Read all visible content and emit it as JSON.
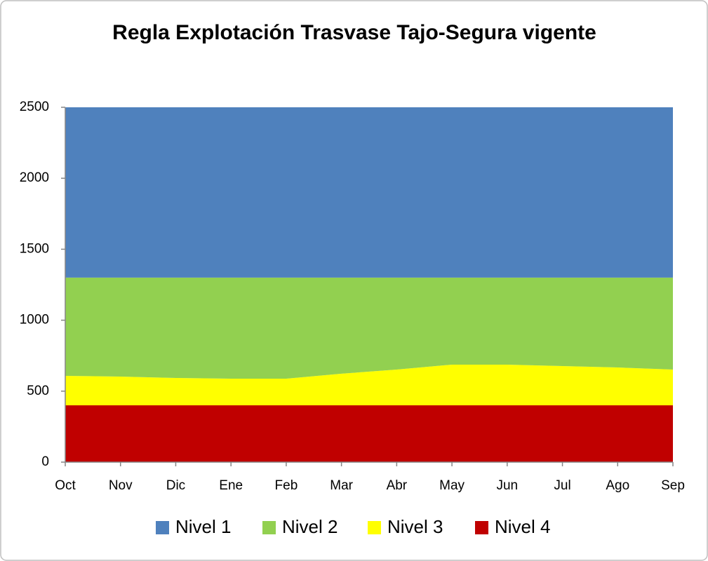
{
  "chart_data": {
    "type": "stacked_area",
    "title": "Regla Explotación Trasvase Tajo-Segura vigente",
    "categories": [
      "Oct",
      "Nov",
      "Dic",
      "Ene",
      "Feb",
      "Mar",
      "Abr",
      "May",
      "Jun",
      "Jul",
      "Ago",
      "Sep"
    ],
    "series": [
      {
        "name": "Nivel 1",
        "color": "#4f81bd",
        "values": [
          1200,
          1200,
          1200,
          1200,
          1200,
          1200,
          1200,
          1200,
          1200,
          1200,
          1200,
          1200
        ]
      },
      {
        "name": "Nivel 2",
        "color": "#92d050",
        "values": [
          692,
          697,
          707,
          712,
          712,
          677,
          648,
          613,
          613,
          623,
          633,
          648
        ]
      },
      {
        "name": "Nivel 3",
        "color": "#ffff00",
        "values": [
          208,
          203,
          193,
          188,
          188,
          223,
          252,
          287,
          287,
          277,
          267,
          252
        ]
      },
      {
        "name": "Nivel 4",
        "color": "#c00000",
        "values": [
          400,
          400,
          400,
          400,
          400,
          400,
          400,
          400,
          400,
          400,
          400,
          400
        ]
      }
    ],
    "ylim": [
      0,
      2500
    ],
    "yticks": [
      0,
      500,
      1000,
      1500,
      2000,
      2500
    ]
  }
}
